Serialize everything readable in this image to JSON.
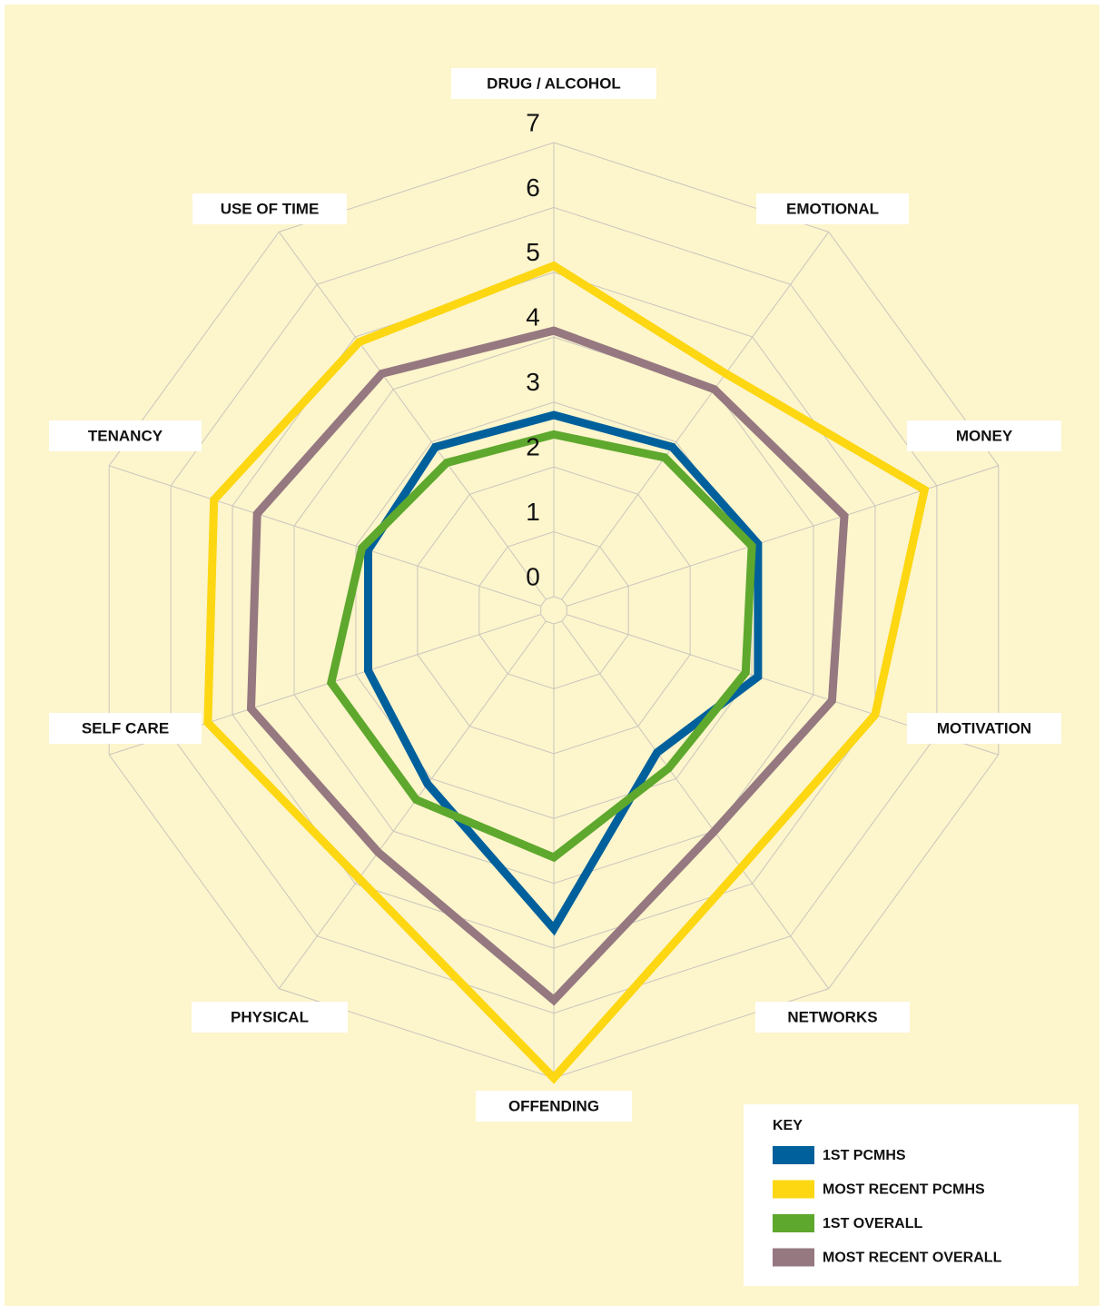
{
  "chart_data": {
    "type": "radar",
    "categories": [
      "DRUG / ALCOHOL",
      "EMOTIONAL",
      "MONEY",
      "MOTIVATION",
      "NETWORKS",
      "OFFENDING",
      "PHYSICAL",
      "SELF CARE",
      "TENANCY",
      "USE OF TIME"
    ],
    "ylim": [
      0,
      7
    ],
    "yticks": [
      0,
      1,
      2,
      3,
      4,
      5,
      6,
      7
    ],
    "legend_title": "KEY",
    "series": [
      {
        "name": "1ST PCMHS",
        "color": "#00609c",
        "values": [
          2.8,
          2.9,
          3.1,
          3.1,
          2.5,
          4.7,
          3.1,
          2.8,
          2.8,
          2.9
        ]
      },
      {
        "name": "MOST RECENT PCMHS",
        "color": "#fcd712",
        "values": [
          5.1,
          4.3,
          5.8,
          5.0,
          4.7,
          7.0,
          4.9,
          5.4,
          5.3,
          4.9
        ]
      },
      {
        "name": "1ST OVERALL",
        "color": "#5ea82d",
        "values": [
          2.5,
          2.7,
          3.0,
          2.9,
          2.8,
          3.6,
          3.4,
          3.4,
          2.9,
          2.6
        ]
      },
      {
        "name": "MOST RECENT OVERALL",
        "color": "#957880",
        "values": [
          4.1,
          4.0,
          4.5,
          4.3,
          4.0,
          5.8,
          4.4,
          4.7,
          4.6,
          4.3
        ]
      }
    ]
  }
}
